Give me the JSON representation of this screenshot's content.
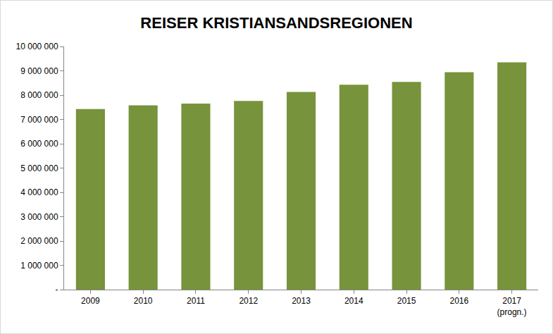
{
  "chart_data": {
    "type": "bar",
    "title": "REISER KRISTIANSANDSREGIONEN",
    "categories": [
      "2009",
      "2010",
      "2011",
      "2012",
      "2013",
      "2014",
      "2015",
      "2016",
      "2017\n(progn.)"
    ],
    "values": [
      7430000,
      7580000,
      7650000,
      7760000,
      8130000,
      8430000,
      8540000,
      8940000,
      9350000
    ],
    "color": "#77933c",
    "ylim": [
      0,
      10000000
    ],
    "yticks": [
      {
        "value": 0,
        "label": "-"
      },
      {
        "value": 1000000,
        "label": "1 000 000"
      },
      {
        "value": 2000000,
        "label": "2 000 000"
      },
      {
        "value": 3000000,
        "label": "3 000 000"
      },
      {
        "value": 4000000,
        "label": "4 000 000"
      },
      {
        "value": 5000000,
        "label": "5 000 000"
      },
      {
        "value": 6000000,
        "label": "6 000 000"
      },
      {
        "value": 7000000,
        "label": "7 000 000"
      },
      {
        "value": 8000000,
        "label": "8 000 000"
      },
      {
        "value": 9000000,
        "label": "9 000 000"
      },
      {
        "value": 10000000,
        "label": "10 000 000"
      }
    ],
    "grid": false
  }
}
